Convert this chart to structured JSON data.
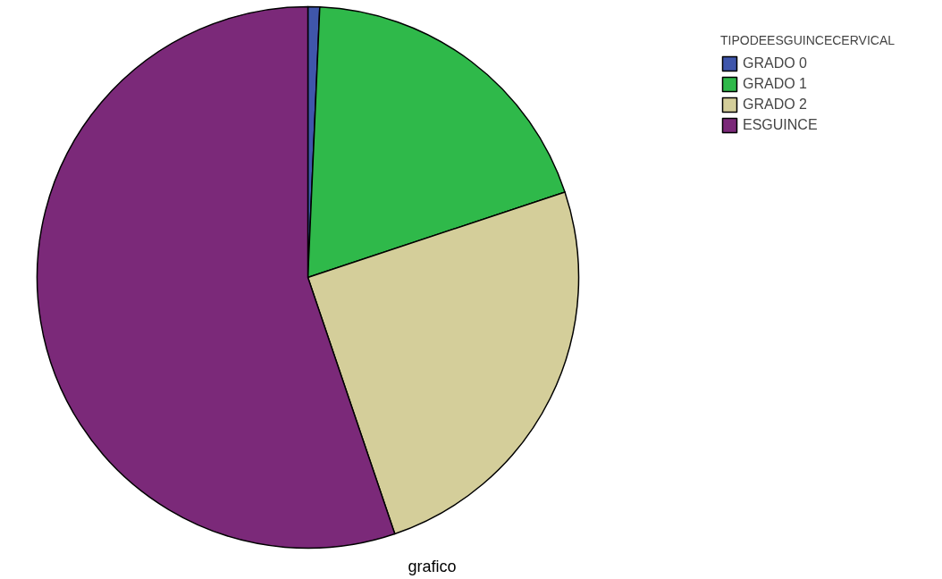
{
  "chart_data": {
    "type": "pie",
    "xlabel": "grafico",
    "legend_title": "TIPODEESGUINCECERVICAL",
    "legend": "top right",
    "categories": [
      "GRADO 0",
      "GRADO 1",
      "GRADO 2",
      "ESGUINCE"
    ],
    "values": [
      0.7,
      19.2,
      24.9,
      55.2
    ],
    "colors": [
      "#3f56ab",
      "#2fb94a",
      "#d4ce9a",
      "#7b2979"
    ]
  }
}
